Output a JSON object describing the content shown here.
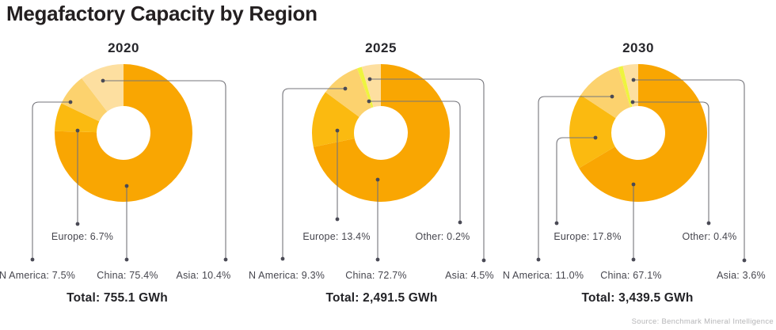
{
  "title": "Megafactory Capacity by Region",
  "source": "Source: Benchmark Mineral Intelligence",
  "colors": {
    "China": "#F9A602",
    "Europe": "#FBBA10",
    "N America": "#FCD26E",
    "Asia": "#FDDFA0",
    "Other": "#EEF43E",
    "leader_line": "#75757B",
    "leader_dot": "#4A4A55",
    "title_text": "#231F20",
    "label_text": "#46464E",
    "total_text": "#232327",
    "source_text": "#B5B5B7"
  },
  "chart_data": [
    {
      "type": "donut",
      "year": "2020",
      "total": "Total: 755.1 GWh",
      "slices": [
        {
          "region": "China",
          "pct": 75.4,
          "label": "China: 75.4%"
        },
        {
          "region": "Europe",
          "pct": 6.7,
          "label": "Europe: 6.7%"
        },
        {
          "region": "N America",
          "pct": 7.5,
          "label": "N America: 7.5%"
        },
        {
          "region": "Asia",
          "pct": 10.4,
          "label": "Asia: 10.4%"
        }
      ]
    },
    {
      "type": "donut",
      "year": "2025",
      "total": "Total: 2,491.5 GWh",
      "slices": [
        {
          "region": "China",
          "pct": 72.7,
          "label": "China: 72.7%"
        },
        {
          "region": "Europe",
          "pct": 13.4,
          "label": "Europe: 13.4%"
        },
        {
          "region": "N America",
          "pct": 9.3,
          "label": "N America: 9.3%"
        },
        {
          "region": "Other",
          "pct": 0.2,
          "label": "Other: 0.2%"
        },
        {
          "region": "Asia",
          "pct": 4.5,
          "label": "Asia: 4.5%"
        }
      ]
    },
    {
      "type": "donut",
      "year": "2030",
      "total": "Total: 3,439.5 GWh",
      "slices": [
        {
          "region": "China",
          "pct": 67.1,
          "label": "China: 67.1%"
        },
        {
          "region": "Europe",
          "pct": 17.8,
          "label": "Europe: 17.8%"
        },
        {
          "region": "N America",
          "pct": 11.0,
          "label": "N America: 11.0%"
        },
        {
          "region": "Other",
          "pct": 0.4,
          "label": "Other: 0.4%"
        },
        {
          "region": "Asia",
          "pct": 3.6,
          "label": "Asia: 3.6%"
        }
      ]
    }
  ]
}
